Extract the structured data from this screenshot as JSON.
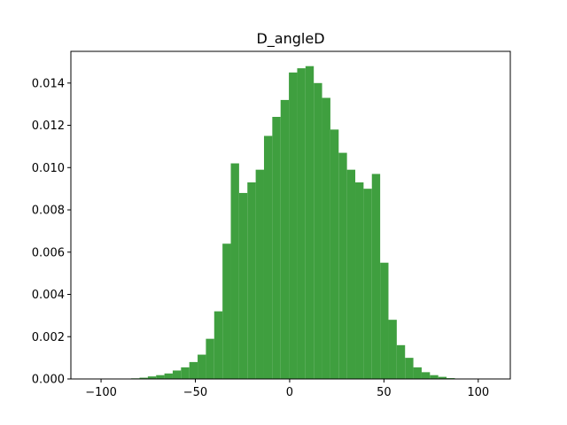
{
  "chart_data": {
    "type": "bar",
    "title": "D_angleD",
    "xlabel": "",
    "ylabel": "",
    "xlim": [
      -116,
      117
    ],
    "ylim": [
      0,
      0.0155
    ],
    "color": "#3f9f3f",
    "bin_edges": [
      -84,
      -79.6,
      -75.2,
      -70.8,
      -66.4,
      -62,
      -57.6,
      -53.2,
      -48.8,
      -44.4,
      -40,
      -35.6,
      -31.2,
      -26.8,
      -22.4,
      -18,
      -13.6,
      -9.2,
      -4.8,
      -0.4,
      4,
      8.4,
      12.8,
      17.2,
      21.6,
      26,
      30.4,
      34.8,
      39.2,
      43.6,
      48,
      52.4,
      56.8,
      61.2,
      65.6,
      70,
      74.4,
      78.8,
      83.2,
      87.6
    ],
    "values": [
      3e-05,
      6e-05,
      0.00012,
      0.00018,
      0.00026,
      0.0004,
      0.00055,
      0.0008,
      0.00115,
      0.0019,
      0.0032,
      0.0064,
      0.0102,
      0.0088,
      0.0093,
      0.0099,
      0.0115,
      0.0124,
      0.0132,
      0.0145,
      0.0147,
      0.0148,
      0.014,
      0.0133,
      0.0118,
      0.0107,
      0.0099,
      0.0093,
      0.009,
      0.0097,
      0.0055,
      0.0028,
      0.0016,
      0.001,
      0.00055,
      0.00032,
      0.00018,
      0.0001,
      4e-05
    ],
    "x_ticks": [
      -100,
      -50,
      0,
      50,
      100
    ],
    "x_tick_labels": [
      "−100",
      "−50",
      "0",
      "50",
      "100"
    ],
    "y_ticks": [
      0,
      0.002,
      0.004,
      0.006,
      0.008,
      0.01,
      0.012,
      0.014
    ],
    "y_tick_labels": [
      "0.000",
      "0.002",
      "0.004",
      "0.006",
      "0.008",
      "0.010",
      "0.012",
      "0.014"
    ],
    "grid": false,
    "legend": "none"
  }
}
